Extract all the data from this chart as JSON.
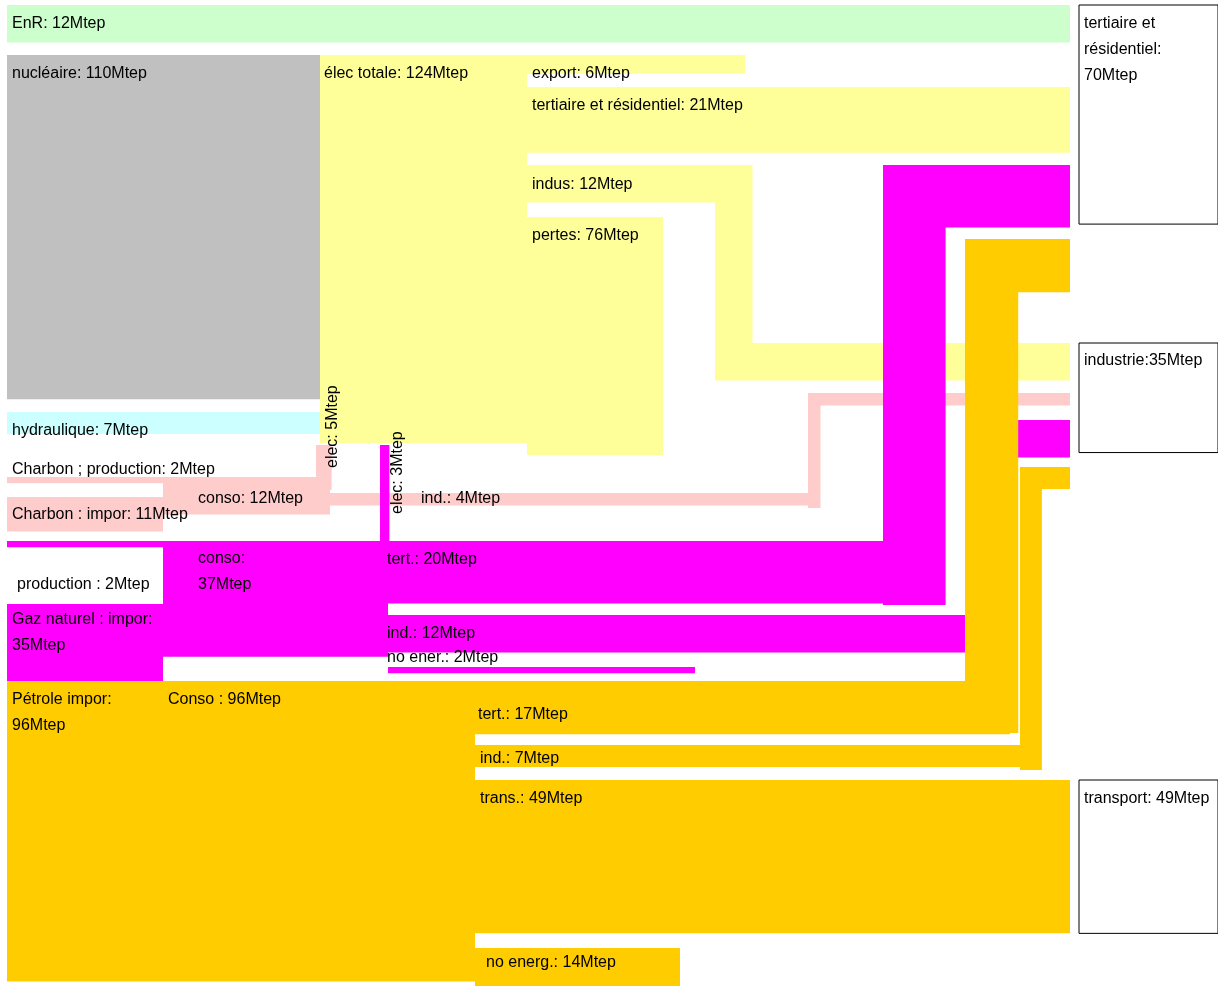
{
  "chart_data": {
    "type": "other",
    "categories": [
      "EnR: 12Mtep",
      "nucléaire: 110Mtep",
      "élec totale: 124Mtep",
      "export: 6Mtep",
      "tertiaire et résidentiel: 21Mtep",
      "indus: 12Mtep",
      "pertes: 76Mtep",
      "hydraulique: 7Mtep",
      "Charbon ; production: 2Mtep",
      "Charbon : impor: 11Mtep",
      "conso: 12Mtep",
      "elec: 5Mtep",
      "ind.: 4Mtep",
      "production : 2Mtep",
      "Gaz naturel : impor: 35Mtep",
      "conso: 37Mtep",
      "elec: 3Mtep",
      "tert.: 20Mtep",
      "ind.: 12Mtep",
      "no ener.: 2Mtep",
      "Pétrole impor: 96Mtep",
      "Conso : 96Mtep",
      "tert.: 17Mtep",
      "ind.: 7Mtep",
      "trans.: 49Mtep",
      "no energ.: 14Mtep",
      "tertiaire et résidentiel: 70Mtep",
      "industrie:35Mtep",
      "transport: 49Mtep"
    ],
    "data_labels": true,
    "values": [
      12,
      110,
      124,
      6,
      21,
      12,
      76,
      7,
      2,
      11,
      12,
      5,
      4,
      2,
      35,
      37,
      3,
      20,
      12,
      2,
      96,
      96,
      17,
      7,
      49,
      14,
      70,
      35,
      49
    ],
    "colors": [
      "#ccffcc",
      "#c0c0c0",
      "#ffff99",
      "#ffff99",
      "#ffff99",
      "#ffff99",
      "#ffff99",
      "#ccffff",
      "#ffcccc",
      "#ffcccc",
      "#ffcccc",
      "#ffcccc",
      "#ffcccc",
      "#ff00ff",
      "#ff00ff",
      "#ff00ff",
      "#ff00ff",
      "#ff00ff",
      "#ff00ff",
      "#ff00ff",
      "#ffcc00",
      "#ffcc00",
      "#ffcc00",
      "#ffcc00",
      "#ffcc00",
      "#ffcc00",
      "#ffffff",
      "#ffffff",
      "#ffffff"
    ]
  }
}
